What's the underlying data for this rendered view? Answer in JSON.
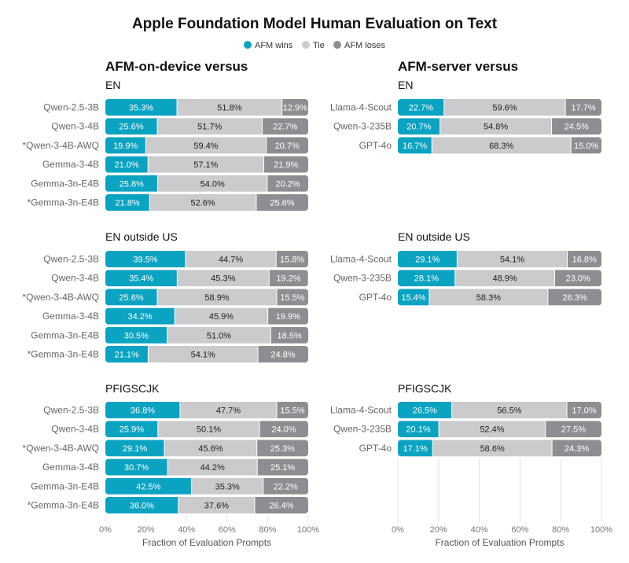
{
  "chart_data": {
    "type": "bar",
    "orientation": "horizontal",
    "stacked": true,
    "title": "Apple Foundation Model Human Evaluation on Text",
    "legend": {
      "placement": "top-center",
      "entries": [
        {
          "name": "AFM wins",
          "color": "#0AA3C2"
        },
        {
          "name": "Tie",
          "color": "#CBCBCD"
        },
        {
          "name": "AFM loses",
          "color": "#8E8E92"
        }
      ]
    },
    "xlim": [
      0,
      100
    ],
    "xticks": [
      "0%",
      "20%",
      "40%",
      "60%",
      "80%",
      "100%"
    ],
    "xlabel": "Fraction of Evaluation Prompts",
    "panels": [
      {
        "title": "AFM-on-device versus",
        "sections": [
          {
            "title": "EN",
            "rows": [
              {
                "label": "Qwen-2.5-3B",
                "values": [
                  35.3,
                  51.8,
                  12.9
                ]
              },
              {
                "label": "Qwen-3-4B",
                "values": [
                  25.6,
                  51.7,
                  22.7
                ]
              },
              {
                "label": "*Qwen-3-4B-AWQ",
                "values": [
                  19.9,
                  59.4,
                  20.7
                ]
              },
              {
                "label": "Gemma-3-4B",
                "values": [
                  21.0,
                  57.1,
                  21.9
                ]
              },
              {
                "label": "Gemma-3n-E4B",
                "values": [
                  25.8,
                  54.0,
                  20.2
                ]
              },
              {
                "label": "*Gemma-3n-E4B",
                "values": [
                  21.8,
                  52.6,
                  25.6
                ]
              }
            ]
          },
          {
            "title": "EN outside US",
            "rows": [
              {
                "label": "Qwen-2.5-3B",
                "values": [
                  39.5,
                  44.7,
                  15.8
                ]
              },
              {
                "label": "Qwen-3-4B",
                "values": [
                  35.4,
                  45.3,
                  19.2
                ]
              },
              {
                "label": "*Qwen-3-4B-AWQ",
                "values": [
                  25.6,
                  58.9,
                  15.5
                ]
              },
              {
                "label": "Gemma-3-4B",
                "values": [
                  34.2,
                  45.9,
                  19.9
                ]
              },
              {
                "label": "Gemma-3n-E4B",
                "values": [
                  30.5,
                  51.0,
                  18.5
                ]
              },
              {
                "label": "*Gemma-3n-E4B",
                "values": [
                  21.1,
                  54.1,
                  24.8
                ]
              }
            ]
          },
          {
            "title": "PFIGSCJK",
            "rows": [
              {
                "label": "Qwen-2.5-3B",
                "values": [
                  36.8,
                  47.7,
                  15.5
                ]
              },
              {
                "label": "Qwen-3-4B",
                "values": [
                  25.9,
                  50.1,
                  24.0
                ]
              },
              {
                "label": "*Qwen-3-4B-AWQ",
                "values": [
                  29.1,
                  45.6,
                  25.3
                ]
              },
              {
                "label": "Gemma-3-4B",
                "values": [
                  30.7,
                  44.2,
                  25.1
                ]
              },
              {
                "label": "Gemma-3n-E4B",
                "values": [
                  42.5,
                  35.3,
                  22.2
                ]
              },
              {
                "label": "*Gemma-3n-E4B",
                "values": [
                  36.0,
                  37.6,
                  26.4
                ]
              }
            ]
          }
        ]
      },
      {
        "title": "AFM-server versus",
        "sections": [
          {
            "title": "EN",
            "rows": [
              {
                "label": "Llama-4-Scout",
                "values": [
                  22.7,
                  59.6,
                  17.7
                ]
              },
              {
                "label": "Qwen-3-235B",
                "values": [
                  20.7,
                  54.8,
                  24.5
                ]
              },
              {
                "label": "GPT-4o",
                "values": [
                  16.7,
                  68.3,
                  15.0
                ]
              }
            ]
          },
          {
            "title": "EN outside US",
            "rows": [
              {
                "label": "Llama-4-Scout",
                "values": [
                  29.1,
                  54.1,
                  16.8
                ]
              },
              {
                "label": "Qwen-3-235B",
                "values": [
                  28.1,
                  48.9,
                  23.0
                ]
              },
              {
                "label": "GPT-4o",
                "values": [
                  15.4,
                  58.3,
                  26.3
                ]
              }
            ]
          },
          {
            "title": "PFIGSCJK",
            "rows": [
              {
                "label": "Llama-4-Scout",
                "values": [
                  26.5,
                  56.5,
                  17.0
                ]
              },
              {
                "label": "Qwen-3-235B",
                "values": [
                  20.1,
                  52.4,
                  27.5
                ]
              },
              {
                "label": "GPT-4o",
                "values": [
                  17.1,
                  58.6,
                  24.3
                ]
              }
            ]
          }
        ]
      }
    ]
  }
}
